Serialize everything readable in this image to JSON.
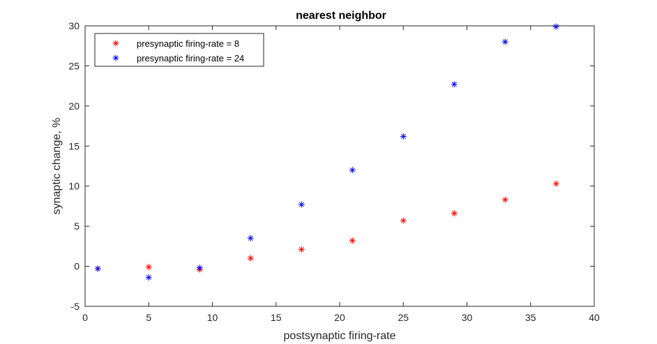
{
  "chart_data": {
    "type": "scatter",
    "title": "nearest neighbor",
    "xlabel": "postsynaptic firing-rate",
    "ylabel": "synaptic change, %",
    "xlim": [
      0,
      40
    ],
    "ylim": [
      -5,
      30
    ],
    "xticks": [
      0,
      5,
      10,
      15,
      20,
      25,
      30,
      35,
      40
    ],
    "yticks": [
      -5,
      0,
      5,
      10,
      15,
      20,
      25,
      30
    ],
    "grid": false,
    "legend_position": "top-left",
    "marker": "asterisk",
    "series": [
      {
        "name": "presynaptic firing-rate = 8",
        "color": "#ff0000",
        "x": [
          1,
          5,
          9,
          13,
          17,
          21,
          25,
          29,
          33,
          37
        ],
        "y": [
          -0.3,
          -0.1,
          -0.4,
          1.0,
          2.1,
          3.2,
          5.7,
          6.6,
          8.3,
          10.3
        ]
      },
      {
        "name": "presynaptic firing-rate = 24",
        "color": "#0000ff",
        "x": [
          1,
          5,
          9,
          13,
          17,
          21,
          25,
          29,
          33,
          37
        ],
        "y": [
          -0.3,
          -1.4,
          -0.2,
          3.5,
          7.7,
          12.0,
          16.2,
          22.7,
          28.0,
          29.9
        ]
      }
    ]
  }
}
